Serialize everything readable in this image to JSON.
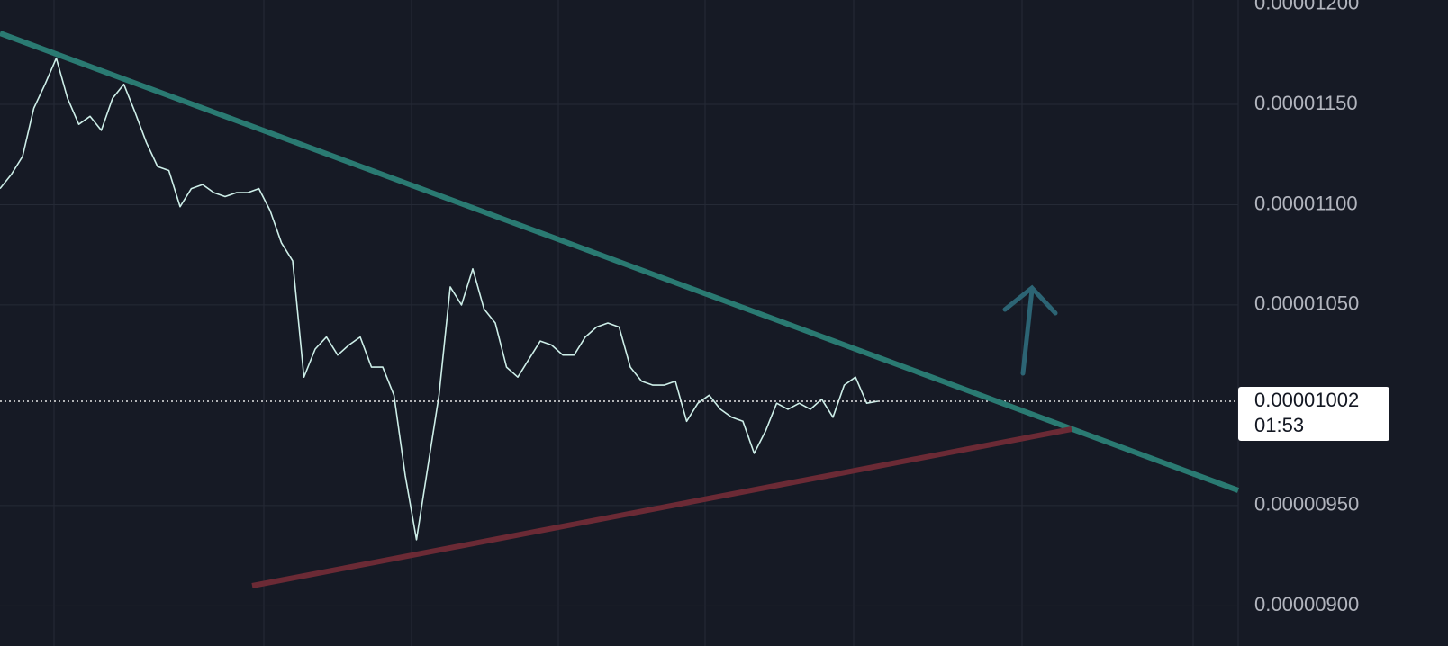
{
  "chart_data": {
    "type": "line",
    "color": "#cdeee8",
    "grid": true,
    "ylim": [
      8.8e-06,
      1.202e-05
    ],
    "yticks": [
      {
        "value": 1.2e-05,
        "label": "0.00001200"
      },
      {
        "value": 1.15e-05,
        "label": "0.00001150"
      },
      {
        "value": 1.1e-05,
        "label": "0.00001100"
      },
      {
        "value": 1.05e-05,
        "label": "0.00001050"
      },
      {
        "value": 9.5e-06,
        "label": "0.00000950"
      },
      {
        "value": 9e-06,
        "label": "0.00000900"
      }
    ],
    "values": [
      1.108e-05,
      1.115e-05,
      1.124e-05,
      1.148e-05,
      1.16e-05,
      1.173e-05,
      1.153e-05,
      1.14e-05,
      1.144e-05,
      1.137e-05,
      1.153e-05,
      1.16e-05,
      1.146e-05,
      1.131e-05,
      1.119e-05,
      1.117e-05,
      1.099e-05,
      1.108e-05,
      1.11e-05,
      1.106e-05,
      1.104e-05,
      1.106e-05,
      1.106e-05,
      1.108e-05,
      1.097e-05,
      1.081e-05,
      1.072e-05,
      1.014e-05,
      1.028e-05,
      1.034e-05,
      1.025e-05,
      1.03e-05,
      1.034e-05,
      1.019e-05,
      1.019e-05,
      1.005e-05,
      9.65e-06,
      9.33e-06,
      9.69e-06,
      1.005e-05,
      1.059e-05,
      1.05e-05,
      1.068e-05,
      1.048e-05,
      1.041e-05,
      1.019e-05,
      1.014e-05,
      1.023e-05,
      1.032e-05,
      1.03e-05,
      1.025e-05,
      1.025e-05,
      1.034e-05,
      1.039e-05,
      1.041e-05,
      1.039e-05,
      1.019e-05,
      1.012e-05,
      1.01e-05,
      1.01e-05,
      1.012e-05,
      9.92e-06,
      1.001e-05,
      1.005e-05,
      9.98e-06,
      9.94e-06,
      9.92e-06,
      9.76e-06,
      9.87e-06,
      1.001e-05,
      9.98e-06,
      1.001e-05,
      9.98e-06,
      1.003e-05,
      9.94e-06,
      1.01e-05,
      1.014e-05,
      1.001e-05,
      1.002e-05
    ],
    "last_price": {
      "value": 1.002e-05,
      "label": "0.00001002"
    },
    "countdown": "01:53"
  }
}
